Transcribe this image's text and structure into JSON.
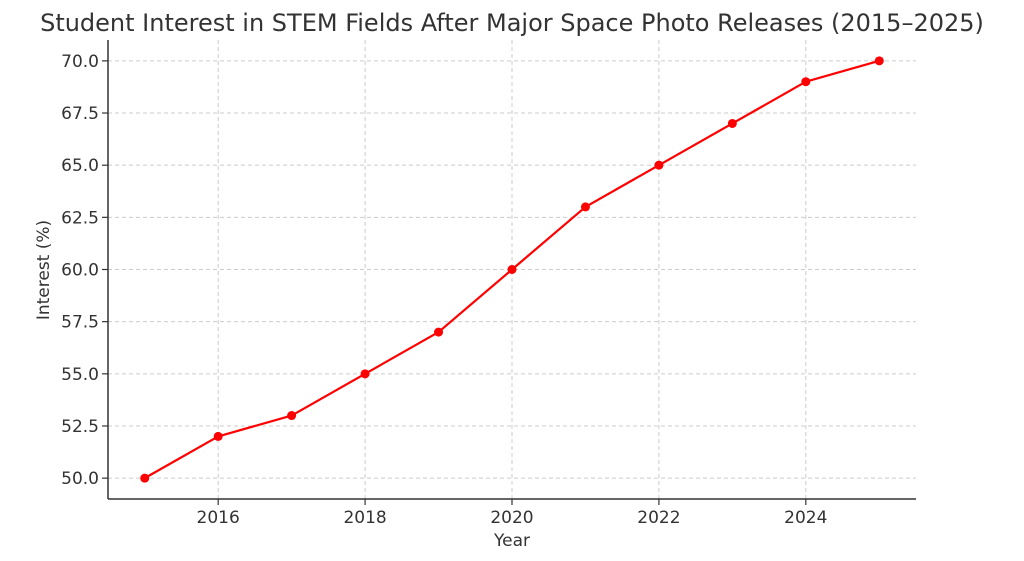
{
  "chart_data": {
    "type": "line",
    "title": "Student Interest in STEM Fields After Major Space Photo Releases (2015–2025)",
    "xlabel": "Year",
    "ylabel": "Interest (%)",
    "x": [
      2015,
      2016,
      2017,
      2018,
      2019,
      2020,
      2021,
      2022,
      2023,
      2024,
      2025
    ],
    "series": [
      {
        "values": [
          50,
          52,
          53,
          55,
          57,
          60,
          63,
          65,
          67,
          69,
          70
        ],
        "color": "#ff0000",
        "marker": "circle"
      }
    ],
    "xlim": [
      2014.5,
      2025.5
    ],
    "ylim": [
      49,
      71
    ],
    "x_ticks": [
      2016,
      2018,
      2020,
      2022,
      2024
    ],
    "x_tick_labels": [
      "2016",
      "2018",
      "2020",
      "2022",
      "2024"
    ],
    "y_ticks": [
      50,
      52.5,
      55,
      57.5,
      60,
      62.5,
      65,
      67.5,
      70
    ],
    "y_tick_labels": [
      "50.0",
      "52.5",
      "55.0",
      "57.5",
      "60.0",
      "62.5",
      "65.0",
      "67.5",
      "70.0"
    ],
    "grid": true
  }
}
